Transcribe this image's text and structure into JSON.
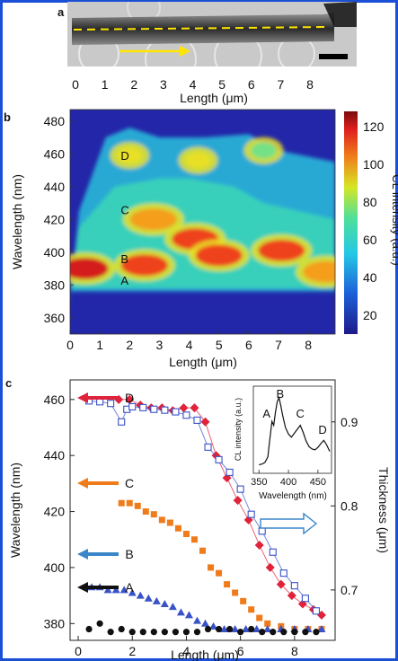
{
  "figure": {
    "frame_color": "#1a4fd6"
  },
  "panel_a": {
    "label": "a",
    "x_label": "Length (μm)",
    "ticks": [
      "0",
      "1",
      "2",
      "3",
      "4",
      "5",
      "6",
      "7",
      "8"
    ]
  },
  "panel_b": {
    "label": "b",
    "y_label": "Wavelength (nm)",
    "x_label": "Length (μm)",
    "colorbar_label": "CL intensity (a.u.)",
    "colorbar_ticks": [
      "20",
      "40",
      "60",
      "80",
      "100",
      "120"
    ],
    "markers": [
      {
        "text": "D",
        "color": "#e6f7ff"
      },
      {
        "text": "C",
        "color": "#111111"
      },
      {
        "text": "B",
        "color": "#111111"
      },
      {
        "text": "A",
        "color": "#111111"
      }
    ]
  },
  "panel_c": {
    "label": "c",
    "y_label": "Wavelength (nm)",
    "y2_label": "Thickness (μm)",
    "x_label": "Length (μm)",
    "inset": {
      "x_label": "Wavelength (nm)",
      "y_label": "CL intensity (a.u.)",
      "ticks": [
        "350",
        "400",
        "450"
      ],
      "peak_labels": [
        "A",
        "B",
        "C",
        "D"
      ]
    },
    "series_labels": [
      "D",
      "C",
      "B",
      "A"
    ]
  },
  "chart_data": [
    {
      "type": "heatmap",
      "xlabel": "Length (μm)",
      "ylabel": "Wavelength (nm)",
      "colorbar_label": "CL intensity (a.u.)",
      "x_ticks": [
        0,
        1,
        2,
        3,
        4,
        5,
        6,
        7,
        8
      ],
      "y_ticks": [
        360,
        380,
        400,
        420,
        440,
        460,
        480
      ],
      "xlim": [
        0,
        8.9
      ],
      "ylim": [
        350,
        487
      ],
      "clim": [
        10,
        128
      ],
      "blobs": [
        {
          "x": 0.5,
          "y": 390,
          "intensity": 115
        },
        {
          "x": 2.5,
          "y": 392,
          "intensity": 105
        },
        {
          "x": 4.2,
          "y": 408,
          "intensity": 110
        },
        {
          "x": 5.0,
          "y": 398,
          "intensity": 100
        },
        {
          "x": 2.8,
          "y": 420,
          "intensity": 90
        },
        {
          "x": 7.1,
          "y": 401,
          "intensity": 105
        },
        {
          "x": 8.6,
          "y": 388,
          "intensity": 90
        },
        {
          "x": 2.0,
          "y": 459,
          "intensity": 70
        },
        {
          "x": 4.3,
          "y": 456,
          "intensity": 70
        },
        {
          "x": 6.5,
          "y": 462,
          "intensity": 60
        }
      ]
    },
    {
      "type": "scatter",
      "xlabel": "Length (μm)",
      "ylabel": "Wavelength (nm)",
      "y2label": "Thickness (μm)",
      "x_ticks": [
        0,
        2,
        4,
        6,
        8
      ],
      "y_ticks": [
        380,
        400,
        420,
        440,
        460
      ],
      "y2_ticks": [
        0.7,
        0.8,
        0.9
      ],
      "xlim": [
        -0.3,
        9.5
      ],
      "ylim": [
        374,
        467
      ],
      "y2lim": [
        0.64,
        0.95
      ],
      "series": [
        {
          "name": "D",
          "color": "#e0223a",
          "marker": "diamond",
          "axis": "left",
          "x": [
            1.5,
            1.9,
            2.3,
            2.7,
            3.1,
            3.5,
            3.9,
            4.3,
            4.7,
            5.1,
            5.5,
            5.9,
            6.3,
            6.7,
            7.1,
            7.5,
            7.9,
            8.3,
            8.7,
            9.0
          ],
          "y": [
            460,
            460,
            458,
            457,
            457,
            456,
            457,
            457,
            452,
            440,
            432,
            424,
            417,
            408,
            400,
            394,
            390,
            387,
            385,
            383
          ]
        },
        {
          "name": "C",
          "color": "#f07b1a",
          "marker": "square",
          "axis": "left",
          "x": [
            1.6,
            1.9,
            2.2,
            2.5,
            2.8,
            3.1,
            3.4,
            3.7,
            4.0,
            4.3,
            4.6,
            4.9,
            5.2,
            5.5,
            5.8,
            6.1,
            6.4,
            6.7,
            7.0,
            7.5,
            8.0,
            8.5,
            9.0
          ],
          "y": [
            423,
            423,
            422,
            420,
            419,
            417,
            416,
            414,
            412,
            410,
            406,
            400,
            398,
            394,
            391,
            388,
            385,
            382,
            380,
            379,
            378,
            378,
            378
          ]
        },
        {
          "name": "B",
          "color": "#3a52c8",
          "marker": "triangle",
          "axis": "left",
          "x": [
            0.5,
            0.8,
            1.1,
            1.4,
            1.7,
            2.0,
            2.3,
            2.6,
            2.9,
            3.2,
            3.5,
            3.8,
            4.1,
            4.4,
            4.7,
            5.0,
            5.4,
            5.8,
            6.2,
            6.6,
            7.0,
            7.5,
            8.0,
            8.5,
            9.0
          ],
          "y": [
            393,
            393,
            392,
            392,
            392,
            391,
            390,
            389,
            388,
            387,
            386,
            384,
            383,
            381,
            380,
            379,
            378,
            378,
            378,
            378,
            378,
            378,
            378,
            378,
            378
          ]
        },
        {
          "name": "A",
          "color": "#111111",
          "marker": "circle",
          "axis": "left",
          "x": [
            0.4,
            0.8,
            1.2,
            1.6,
            2.0,
            2.4,
            2.8,
            3.2,
            3.6,
            4.0,
            4.4,
            4.8,
            5.2,
            5.6,
            6.0,
            6.4,
            6.8,
            7.2,
            7.6,
            8.0,
            8.4,
            8.8
          ],
          "y": [
            378,
            380,
            377,
            378,
            377,
            377,
            377,
            377,
            377,
            377,
            377,
            378,
            378,
            378,
            377,
            378,
            377,
            377,
            377,
            377,
            377,
            377
          ]
        },
        {
          "name": "Thickness",
          "color": "#3a52c8",
          "marker": "open-square",
          "axis": "right",
          "x": [
            0.4,
            0.8,
            1.2,
            1.6,
            1.8,
            2.0,
            2.4,
            2.8,
            3.2,
            3.6,
            4.0,
            4.4,
            4.8,
            5.2,
            5.6,
            6.0,
            6.4,
            6.8,
            7.2,
            7.6,
            8.0,
            8.4,
            8.8
          ],
          "y": [
            0.925,
            0.924,
            0.922,
            0.9,
            0.915,
            0.918,
            0.917,
            0.915,
            0.914,
            0.912,
            0.908,
            0.902,
            0.87,
            0.855,
            0.84,
            0.82,
            0.79,
            0.77,
            0.745,
            0.72,
            0.705,
            0.69,
            0.675
          ]
        }
      ]
    },
    {
      "type": "line",
      "xlabel": "Wavelength (nm)",
      "ylabel": "CL intensity (a.u.)",
      "x_ticks": [
        350,
        400,
        450
      ],
      "xlim": [
        345,
        470
      ],
      "ylim": [
        0,
        1
      ],
      "series": [
        {
          "name": "",
          "color": "#111111",
          "x": [
            350,
            355,
            360,
            365,
            368,
            372,
            375,
            378,
            381,
            384,
            387,
            390,
            395,
            400,
            405,
            410,
            415,
            420,
            425,
            430,
            435,
            440,
            445,
            450,
            455,
            460,
            465,
            470
          ],
          "y": [
            0.05,
            0.06,
            0.08,
            0.15,
            0.35,
            0.6,
            0.55,
            0.72,
            0.85,
            0.9,
            0.8,
            0.68,
            0.52,
            0.44,
            0.4,
            0.45,
            0.5,
            0.55,
            0.46,
            0.35,
            0.28,
            0.25,
            0.24,
            0.27,
            0.32,
            0.36,
            0.3,
            0.22
          ]
        }
      ]
    }
  ]
}
